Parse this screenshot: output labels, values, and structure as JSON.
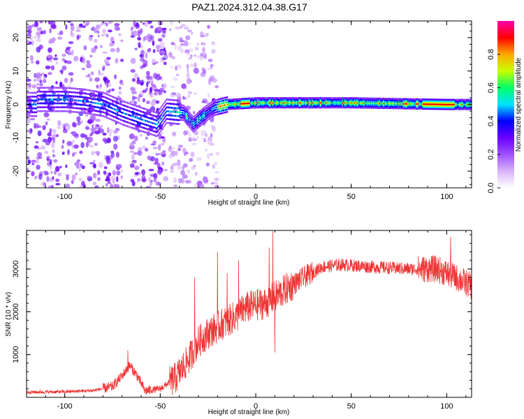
{
  "title": "PAZ1.2024.312.04.38.G17",
  "chart_data": [
    {
      "type": "heatmap",
      "xlabel": "Height of straight line (km)",
      "ylabel": "Frequency (Hz)",
      "xlim": [
        -120,
        113
      ],
      "ylim": [
        -25,
        25
      ],
      "x_ticks": [
        -100,
        -50,
        0,
        50,
        100
      ],
      "y_ticks": [
        -20,
        -10,
        0,
        10,
        20
      ],
      "colorbar": {
        "label": "Normalized spectral amplitude",
        "range": [
          0,
          1
        ],
        "ticks": [
          0.0,
          0.2,
          0.4,
          0.6,
          0.8
        ],
        "tick_labels": [
          "0.0",
          "0.2",
          "0.4",
          "0.6",
          "0.8"
        ],
        "colormap": [
          "#ffffff",
          "#d8b4f8",
          "#a050ff",
          "#6a00ff",
          "#0000ff",
          "#00e5ff",
          "#00ff66",
          "#c8ff00",
          "#ffaa00",
          "#ff0000",
          "#ff00aa"
        ]
      },
      "ridge": [
        {
          "x": -115,
          "y": 1.5
        },
        {
          "x": -100,
          "y": 1.5
        },
        {
          "x": -90,
          "y": 1.0
        },
        {
          "x": -80,
          "y": 0
        },
        {
          "x": -70,
          "y": -2.5
        },
        {
          "x": -60,
          "y": -4.5
        },
        {
          "x": -52,
          "y": -6
        },
        {
          "x": -47,
          "y": -2
        },
        {
          "x": -38,
          "y": -2.5
        },
        {
          "x": -33,
          "y": -6
        },
        {
          "x": -27,
          "y": -3
        },
        {
          "x": -22,
          "y": -1
        },
        {
          "x": -15,
          "y": 0
        },
        {
          "x": 0,
          "y": 0.5
        },
        {
          "x": 50,
          "y": 0.5
        },
        {
          "x": 100,
          "y": 0
        },
        {
          "x": 113,
          "y": 0
        }
      ],
      "grid": false
    },
    {
      "type": "line",
      "xlabel": "Height of straight line (km)",
      "ylabel": "SNR (10 * v/v)",
      "xlim": [
        -120,
        113
      ],
      "ylim": [
        0,
        3900
      ],
      "x_ticks": [
        -100,
        -50,
        0,
        50,
        100
      ],
      "y_ticks": [
        1000,
        2000,
        3000
      ],
      "series": [
        {
          "color": "#ee3333",
          "envelope": [
            {
              "x": -120,
              "y": 120
            },
            {
              "x": -100,
              "y": 130
            },
            {
              "x": -85,
              "y": 160
            },
            {
              "x": -75,
              "y": 250
            },
            {
              "x": -70,
              "y": 500
            },
            {
              "x": -66,
              "y": 750
            },
            {
              "x": -62,
              "y": 500
            },
            {
              "x": -58,
              "y": 150
            },
            {
              "x": -50,
              "y": 200
            },
            {
              "x": -42,
              "y": 450
            },
            {
              "x": -35,
              "y": 900
            },
            {
              "x": -30,
              "y": 1300
            },
            {
              "x": -25,
              "y": 1500
            },
            {
              "x": -18,
              "y": 1700
            },
            {
              "x": -10,
              "y": 1900
            },
            {
              "x": -5,
              "y": 2100
            },
            {
              "x": 5,
              "y": 2200
            },
            {
              "x": 15,
              "y": 2500
            },
            {
              "x": 25,
              "y": 2800
            },
            {
              "x": 35,
              "y": 3050
            },
            {
              "x": 45,
              "y": 3100
            },
            {
              "x": 60,
              "y": 3050
            },
            {
              "x": 80,
              "y": 3000
            },
            {
              "x": 95,
              "y": 3000
            },
            {
              "x": 105,
              "y": 2800
            },
            {
              "x": 113,
              "y": 2600
            }
          ],
          "spikes": [
            {
              "x": -67,
              "y": 1100
            },
            {
              "x": -32,
              "y": 2800
            },
            {
              "x": -20,
              "y": 3400
            },
            {
              "x": -15,
              "y": 2900
            },
            {
              "x": -9,
              "y": 3200
            },
            {
              "x": 7,
              "y": 3500
            },
            {
              "x": 9,
              "y": 3880
            },
            {
              "x": 10,
              "y": 1050
            },
            {
              "x": 102,
              "y": 3750
            }
          ]
        }
      ],
      "grid": false
    }
  ]
}
